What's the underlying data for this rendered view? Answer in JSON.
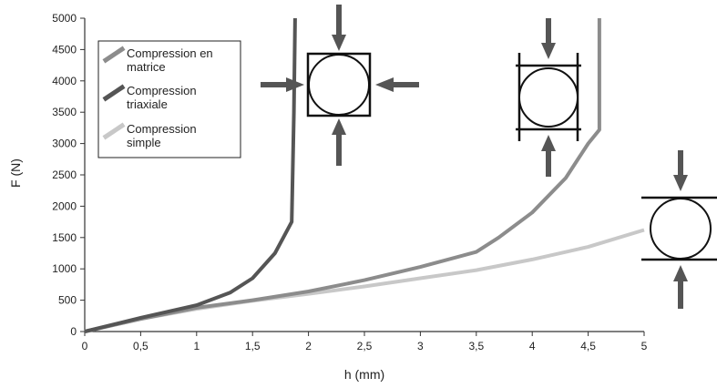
{
  "chart_data": {
    "type": "line",
    "xlabel": "h (mm)",
    "ylabel": "F (N)",
    "xlim": [
      0,
      5
    ],
    "ylim": [
      0,
      5000
    ],
    "x_ticks": [
      "0",
      "0,5",
      "1",
      "1,5",
      "2",
      "2,5",
      "3",
      "3,5",
      "4",
      "4,5",
      "5"
    ],
    "y_ticks": [
      "0",
      "500",
      "1000",
      "1500",
      "2000",
      "2500",
      "3000",
      "3500",
      "4000",
      "4500",
      "5000"
    ],
    "grid": false,
    "legend_position": "top-left",
    "series": [
      {
        "name": "Compression en matrice",
        "color": "#8c8c8c",
        "x": [
          0,
          0.5,
          1,
          1.5,
          2,
          2.5,
          3,
          3.5,
          3.7,
          4,
          4.3,
          4.5,
          4.6,
          4.6,
          4.6
        ],
        "y": [
          0,
          200,
          380,
          500,
          640,
          820,
          1030,
          1270,
          1500,
          1900,
          2450,
          3000,
          3220,
          4000,
          5000
        ]
      },
      {
        "name": "Compression triaxiale",
        "color": "#555555",
        "x": [
          0,
          0.5,
          1,
          1.3,
          1.5,
          1.7,
          1.85,
          1.87,
          1.88
        ],
        "y": [
          0,
          220,
          420,
          620,
          850,
          1250,
          1750,
          3500,
          5000
        ]
      },
      {
        "name": "Compression simple",
        "color": "#c8c8c8",
        "x": [
          0,
          0.5,
          1,
          1.5,
          2,
          2.5,
          3,
          3.5,
          4,
          4.5,
          5
        ],
        "y": [
          0,
          200,
          360,
          490,
          600,
          720,
          850,
          980,
          1150,
          1350,
          1620
        ]
      }
    ]
  }
}
